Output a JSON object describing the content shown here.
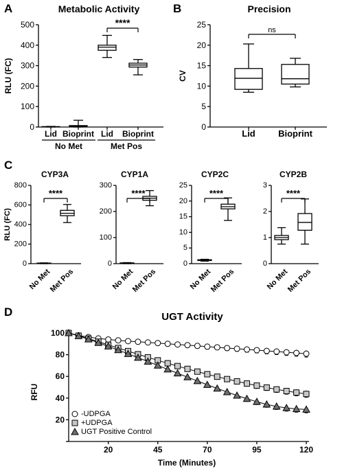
{
  "panel_letters": [
    "A",
    "B",
    "C",
    "D"
  ],
  "chart_data": [
    {
      "type": "box",
      "title": "Metabolic Activity",
      "ylabel": "RLU (FC)",
      "ylim": [
        0,
        500
      ],
      "yticks": [
        "0",
        "100",
        "200",
        "300",
        "400",
        "500"
      ],
      "categories": [
        "Lid",
        "Bioprint",
        "Lid",
        "Bioprint"
      ],
      "groups": [
        "No Met",
        "Met Pos"
      ],
      "boxes": [
        {
          "min": 0,
          "q1": 0.5,
          "median": 1,
          "q3": 2,
          "max": 3
        },
        {
          "min": 0,
          "q1": 1,
          "median": 3,
          "q3": 7,
          "max": 33
        },
        {
          "min": 340,
          "q1": 375,
          "median": 390,
          "q3": 400,
          "max": 448
        },
        {
          "min": 255,
          "q1": 293,
          "median": 303,
          "q3": 312,
          "max": 330
        }
      ],
      "significance": "****"
    },
    {
      "type": "box",
      "title": "Precision",
      "ylabel": "CV",
      "ylim": [
        0,
        25
      ],
      "yticks": [
        "0",
        "5",
        "10",
        "15",
        "20",
        "25"
      ],
      "categories": [
        "Lid",
        "Bioprint"
      ],
      "boxes": [
        {
          "min": 8.5,
          "q1": 9.2,
          "median": 11.9,
          "q3": 14.3,
          "max": 20.3
        },
        {
          "min": 9.8,
          "q1": 10.5,
          "median": 11.8,
          "q3": 15.3,
          "max": 16.8
        }
      ],
      "significance": "ns"
    },
    {
      "type": "box",
      "title": "CYP3A",
      "ylabel": "RLU (FC)",
      "ylim": [
        0,
        800
      ],
      "yticks": [
        "0",
        "200",
        "400",
        "600",
        "800"
      ],
      "categories": [
        "No Met",
        "Met Pos"
      ],
      "boxes": [
        {
          "min": 0,
          "q1": 2,
          "median": 4,
          "q3": 6,
          "max": 8
        },
        {
          "min": 420,
          "q1": 490,
          "median": 515,
          "q3": 545,
          "max": 605
        }
      ],
      "significance": "****"
    },
    {
      "type": "box",
      "title": "CYP1A",
      "ylim": [
        0,
        300
      ],
      "yticks": [
        "0",
        "100",
        "200",
        "300"
      ],
      "categories": [
        "No Met",
        "Met Pos"
      ],
      "boxes": [
        {
          "min": 0,
          "q1": 1,
          "median": 2,
          "q3": 3,
          "max": 4
        },
        {
          "min": 222,
          "q1": 243,
          "median": 251,
          "q3": 258,
          "max": 280
        }
      ],
      "significance": "****"
    },
    {
      "type": "box",
      "title": "CYP2C",
      "ylim": [
        0,
        25
      ],
      "yticks": [
        "0",
        "5",
        "10",
        "15",
        "20",
        "25"
      ],
      "categories": [
        "No Met",
        "Met Pos"
      ],
      "boxes": [
        {
          "min": 0.8,
          "q1": 1.0,
          "median": 1.1,
          "q3": 1.25,
          "max": 1.4
        },
        {
          "min": 13.8,
          "q1": 17.5,
          "median": 18.2,
          "q3": 19.0,
          "max": 21.0
        }
      ],
      "significance": "****"
    },
    {
      "type": "box",
      "title": "CYP2B",
      "ylim": [
        0,
        3
      ],
      "yticks": [
        "0",
        "1",
        "2",
        "3"
      ],
      "categories": [
        "No Met",
        "Met Pos"
      ],
      "boxes": [
        {
          "min": 0.75,
          "q1": 0.92,
          "median": 1.0,
          "q3": 1.08,
          "max": 1.38
        },
        {
          "min": 0.75,
          "q1": 1.28,
          "median": 1.58,
          "q3": 1.92,
          "max": 2.48
        }
      ],
      "significance": "****"
    },
    {
      "type": "line",
      "title": "UGT Activity",
      "xlabel": "Time (Minutes)",
      "ylabel": "RFU",
      "xlim": [
        0,
        120
      ],
      "ylim": [
        0,
        100
      ],
      "xticks": [
        "20",
        "45",
        "70",
        "95",
        "120"
      ],
      "yticks": [
        "0",
        "20",
        "40",
        "60",
        "80",
        "100"
      ],
      "x": [
        0,
        5,
        10,
        15,
        20,
        25,
        30,
        35,
        40,
        45,
        50,
        55,
        60,
        65,
        70,
        75,
        80,
        85,
        90,
        95,
        100,
        105,
        110,
        115,
        120
      ],
      "legend_position": "bottom-left",
      "series": [
        {
          "name": "-UDPGA",
          "marker": "circle",
          "fill": "#ffffff",
          "values": [
            100,
            97.8,
            96.2,
            95,
            94,
            93.2,
            92.5,
            91.9,
            91.3,
            90.7,
            90,
            89.4,
            88.8,
            88.1,
            87.4,
            86.8,
            86.1,
            85.5,
            84.8,
            84.2,
            83.5,
            82.9,
            82.2,
            81.6,
            80.9
          ],
          "errors": [
            0.6,
            0.8,
            0.9,
            1,
            1.1,
            1.2,
            1.3,
            1.4,
            1.5,
            1.6,
            1.7,
            1.8,
            1.9,
            2,
            2.1,
            2.2,
            2.3,
            2.4,
            2.5,
            2.6,
            2.7,
            2.8,
            2.9,
            3,
            3.1
          ]
        },
        {
          "name": "+UDPGA",
          "marker": "square",
          "fill": "#c8c8c8",
          "values": [
            100,
            97.5,
            94.8,
            92,
            89.1,
            86.2,
            83.3,
            80.4,
            77.6,
            74.8,
            72.1,
            69.5,
            66.9,
            64.4,
            62,
            59.7,
            57.5,
            55.4,
            53.4,
            51.5,
            49.7,
            48,
            46.5,
            45.1,
            43.8
          ],
          "errors": [
            0.6,
            0.8,
            0.9,
            1,
            1.1,
            1.2,
            1.3,
            1.4,
            1.5,
            1.6,
            1.7,
            1.8,
            1.9,
            2,
            2.1,
            2.2,
            2.3,
            2.4,
            2.5,
            2.6,
            2.7,
            2.8,
            2.9,
            3,
            3.1
          ]
        },
        {
          "name": "UGT Positive Control",
          "marker": "triangle",
          "fill": "#707070",
          "values": [
            100,
            97.2,
            94.2,
            91,
            87.7,
            84.3,
            80.8,
            77.3,
            73.7,
            70.1,
            66.5,
            62.9,
            59.3,
            55.8,
            52.3,
            48.9,
            45.6,
            42.4,
            39.4,
            36.6,
            34.2,
            32.3,
            30.9,
            30,
            29.5
          ],
          "errors": [
            0.6,
            0.8,
            0.9,
            1,
            1.1,
            1.2,
            1.3,
            1.4,
            1.5,
            1.6,
            1.7,
            1.8,
            1.9,
            2,
            2.1,
            2.2,
            2.3,
            2.4,
            2.5,
            2.6,
            2.7,
            2.8,
            2.9,
            3,
            3.1
          ]
        }
      ]
    }
  ]
}
